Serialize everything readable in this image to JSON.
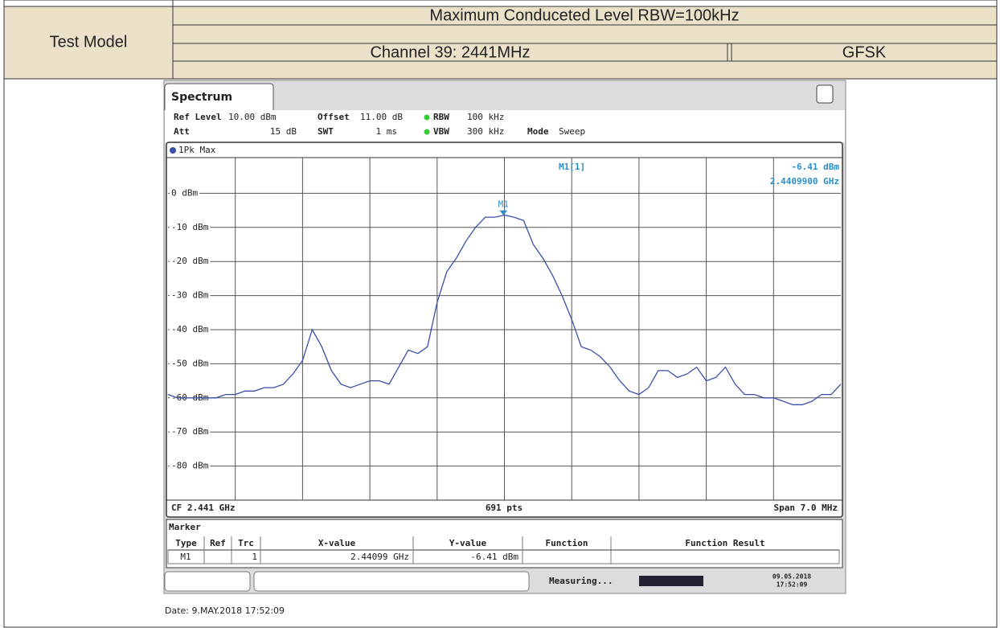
{
  "header": {
    "left": "Test Model",
    "title": "Maximum Conduceted Level RBW=100kHz",
    "channel": "Channel 39: 2441MHz",
    "modulation": "GFSK"
  },
  "analyzer": {
    "tab": "Spectrum",
    "ref_level_label": "Ref Level",
    "ref_level": "10.00 dBm",
    "offset_label": "Offset",
    "offset": "11.00 dB",
    "rbw_label": "RBW",
    "rbw": "100 kHz",
    "att_label": "Att",
    "att": "15 dB",
    "swt_label": "SWT",
    "swt": "1 ms",
    "vbw_label": "VBW",
    "vbw": "300 kHz",
    "mode_label": "Mode",
    "mode": "Sweep",
    "cf": "CF 2.441 GHz",
    "points": "691 pts",
    "span": "Span 7.0 MHz",
    "marker_title": "Marker",
    "marker_headers": [
      "Type",
      "Ref",
      "Trc",
      "X-value",
      "Y-value",
      "Function",
      "Function Result"
    ],
    "marker_row": {
      "type": "M1",
      "trc": "1",
      "x": "2.44099 GHz",
      "y": "-6.41 dBm"
    },
    "status": "Measuring...",
    "status_date": "09.05.2018",
    "status_time": "17:52:09"
  },
  "date": "Date: 9.MAY.2018  17:52:09",
  "chart_data": {
    "type": "line",
    "xlim": [
      2437.5,
      2444.5
    ],
    "ylim": [
      -90,
      10
    ],
    "yticks": [
      {
        "value": 0,
        "label": "0 dBm"
      },
      {
        "value": -10,
        "label": "-10 dBm"
      },
      {
        "value": -20,
        "label": "-20 dBm"
      },
      {
        "value": -30,
        "label": "-30 dBm"
      },
      {
        "value": -40,
        "label": "-40 dBm"
      },
      {
        "value": -50,
        "label": "-50 dBm"
      },
      {
        "value": -60,
        "label": "-60 dBm"
      },
      {
        "value": -70,
        "label": "-70 dBm"
      },
      {
        "value": -80,
        "label": "-80 dBm"
      }
    ],
    "grid": true,
    "x": [
      2437.5,
      2437.6,
      2437.7,
      2437.8,
      2437.9,
      2438.0,
      2438.1,
      2438.2,
      2438.3,
      2438.4,
      2438.5,
      2438.6,
      2438.7,
      2438.8,
      2438.9,
      2439.0,
      2439.1,
      2439.2,
      2439.3,
      2439.4,
      2439.5,
      2439.6,
      2439.7,
      2439.8,
      2439.9,
      2440.0,
      2440.1,
      2440.2,
      2440.3,
      2440.4,
      2440.5,
      2440.6,
      2440.7,
      2440.8,
      2440.9,
      2441.0,
      2441.1,
      2441.2,
      2441.3,
      2441.4,
      2441.5,
      2441.6,
      2441.7,
      2441.8,
      2441.9,
      2442.0,
      2442.1,
      2442.2,
      2442.3,
      2442.4,
      2442.5,
      2442.6,
      2442.7,
      2442.8,
      2442.9,
      2443.0,
      2443.1,
      2443.2,
      2443.3,
      2443.4,
      2443.5,
      2443.6,
      2443.7,
      2443.8,
      2443.9,
      2444.0,
      2444.1,
      2444.2,
      2444.3,
      2444.4,
      2444.5
    ],
    "series": [
      {
        "name": "1Pk Max",
        "color": "#3a4fa8",
        "values": [
          -59,
          -60,
          -60,
          -60,
          -60,
          -60,
          -59,
          -59,
          -58,
          -58,
          -57,
          -57,
          -56,
          -53,
          -49,
          -40,
          -45,
          -52,
          -56,
          -57,
          -56,
          -55,
          -55,
          -56,
          -51,
          -46,
          -47,
          -45,
          -32,
          -23,
          -19,
          -14,
          -10,
          -7,
          -7,
          -6.4,
          -7,
          -8,
          -15,
          -19,
          -24,
          -30,
          -37,
          -45,
          -46,
          -48,
          -51,
          -55,
          -58,
          -59,
          -57,
          -52,
          -52,
          -54,
          -53,
          -51,
          -55,
          -54,
          -51,
          -56,
          -59,
          -59,
          -60,
          -60,
          -61,
          -62,
          -62,
          -61,
          -59,
          -59,
          -56
        ]
      }
    ],
    "marker": {
      "name": "M1",
      "x": 2440.99,
      "y": -6.41,
      "readout_name": "M1[1]",
      "readout_y": "-6.41 dBm",
      "readout_x": "2.4409900 GHz"
    }
  }
}
